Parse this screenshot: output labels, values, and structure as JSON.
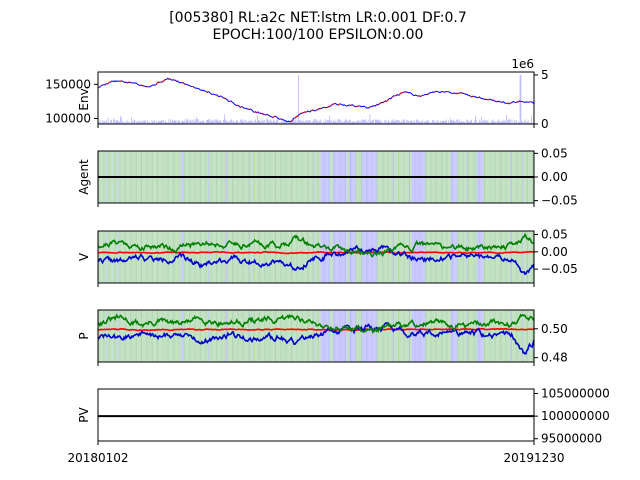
{
  "figure": {
    "title_line1": "[005380] RL:a2c NET:lstm LR:0.001 DF:0.7",
    "title_line2": "EPOCH:100/100 EPSILON:0.00"
  },
  "colors": {
    "price_up": "#ff0000",
    "price_down": "#0000ff",
    "volume": "#0000ff",
    "buy_action": "#008000",
    "sell_action": "#0000ff",
    "value_buy": "#008000",
    "value_sell": "#0000cc",
    "value_hold": "#ff0000",
    "pv_line": "#000000"
  },
  "chart_data": [
    {
      "type": "line",
      "name": "env",
      "ylabel": "Env.",
      "yticks": [
        "150000",
        "100000"
      ],
      "ytick_values": [
        150000,
        100000
      ],
      "ylim": [
        92000,
        168000
      ],
      "y2_ticks": [
        "5",
        "0"
      ],
      "y2_tick_values": [
        5,
        0
      ],
      "y2_offset_label": "1e6",
      "y2lim": [
        0,
        5.3
      ],
      "x_start": "20180102",
      "x_end": "20191230",
      "price_keyframes": [
        [
          0,
          145000
        ],
        [
          0.03,
          155000
        ],
        [
          0.08,
          152000
        ],
        [
          0.12,
          148000
        ],
        [
          0.16,
          158000
        ],
        [
          0.22,
          147000
        ],
        [
          0.28,
          133000
        ],
        [
          0.32,
          120000
        ],
        [
          0.36,
          110000
        ],
        [
          0.4,
          103000
        ],
        [
          0.44,
          96000
        ],
        [
          0.47,
          108000
        ],
        [
          0.5,
          112000
        ],
        [
          0.54,
          122000
        ],
        [
          0.58,
          119000
        ],
        [
          0.62,
          116000
        ],
        [
          0.66,
          124000
        ],
        [
          0.7,
          138000
        ],
        [
          0.74,
          133000
        ],
        [
          0.78,
          140000
        ],
        [
          0.82,
          138000
        ],
        [
          0.86,
          132000
        ],
        [
          0.9,
          128000
        ],
        [
          0.94,
          122000
        ],
        [
          0.97,
          124000
        ],
        [
          1.0,
          121000
        ]
      ],
      "volume_spike_x": [
        0.46,
        0.97
      ]
    },
    {
      "type": "area",
      "name": "agent",
      "ylabel": "Agent",
      "yticks": [
        "0.05",
        "0.00",
        "−0.05"
      ],
      "ytick_values": [
        0.05,
        0.0,
        -0.05
      ],
      "ylim": [
        -0.055,
        0.055
      ],
      "line_value": 0.0
    },
    {
      "type": "line",
      "name": "value",
      "ylabel": "V",
      "yticks": [
        "0.05",
        "0.00",
        "−0.05"
      ],
      "ytick_values": [
        0.05,
        0.0,
        -0.05
      ],
      "ylim": [
        -0.09,
        0.06
      ],
      "buy_keyframes": [
        [
          0,
          0.02
        ],
        [
          0.05,
          0.03
        ],
        [
          0.1,
          0.01
        ],
        [
          0.14,
          0.02
        ],
        [
          0.18,
          0.01
        ],
        [
          0.24,
          0.03
        ],
        [
          0.3,
          0.02
        ],
        [
          0.36,
          0.025
        ],
        [
          0.42,
          0.02
        ],
        [
          0.45,
          0.04
        ],
        [
          0.5,
          0.015
        ],
        [
          0.56,
          0.005
        ],
        [
          0.62,
          -0.005
        ],
        [
          0.66,
          0.0
        ],
        [
          0.7,
          0.01
        ],
        [
          0.75,
          0.02
        ],
        [
          0.8,
          0.015
        ],
        [
          0.85,
          0.01
        ],
        [
          0.9,
          0.02
        ],
        [
          0.95,
          0.015
        ],
        [
          0.98,
          0.045
        ],
        [
          1.0,
          0.03
        ]
      ],
      "sell_keyframes": [
        [
          0,
          -0.02
        ],
        [
          0.05,
          -0.03
        ],
        [
          0.1,
          -0.015
        ],
        [
          0.14,
          -0.025
        ],
        [
          0.18,
          -0.015
        ],
        [
          0.24,
          -0.035
        ],
        [
          0.3,
          -0.02
        ],
        [
          0.36,
          -0.03
        ],
        [
          0.42,
          -0.025
        ],
        [
          0.45,
          -0.045
        ],
        [
          0.5,
          -0.015
        ],
        [
          0.56,
          -0.005
        ],
        [
          0.62,
          0.01
        ],
        [
          0.66,
          0.005
        ],
        [
          0.7,
          -0.01
        ],
        [
          0.75,
          -0.02
        ],
        [
          0.8,
          -0.015
        ],
        [
          0.85,
          -0.01
        ],
        [
          0.9,
          -0.02
        ],
        [
          0.95,
          -0.02
        ],
        [
          0.98,
          -0.07
        ],
        [
          1.0,
          -0.04
        ]
      ],
      "hold_value": -0.002
    },
    {
      "type": "line",
      "name": "policy",
      "ylabel": "P",
      "yticks": [
        "0.50",
        "0.48"
      ],
      "ytick_values": [
        0.5,
        0.48
      ],
      "ylim": [
        0.477,
        0.513
      ],
      "buy_keyframes": [
        [
          0,
          0.505
        ],
        [
          0.05,
          0.507
        ],
        [
          0.1,
          0.503
        ],
        [
          0.14,
          0.505
        ],
        [
          0.18,
          0.503
        ],
        [
          0.24,
          0.507
        ],
        [
          0.3,
          0.504
        ],
        [
          0.36,
          0.506
        ],
        [
          0.42,
          0.505
        ],
        [
          0.45,
          0.509
        ],
        [
          0.5,
          0.503
        ],
        [
          0.56,
          0.501
        ],
        [
          0.62,
          0.499
        ],
        [
          0.66,
          0.5
        ],
        [
          0.7,
          0.502
        ],
        [
          0.75,
          0.504
        ],
        [
          0.8,
          0.503
        ],
        [
          0.85,
          0.502
        ],
        [
          0.9,
          0.504
        ],
        [
          0.95,
          0.503
        ],
        [
          0.98,
          0.511
        ],
        [
          1.0,
          0.506
        ]
      ],
      "sell_keyframes": [
        [
          0,
          0.495
        ],
        [
          0.05,
          0.493
        ],
        [
          0.1,
          0.497
        ],
        [
          0.14,
          0.494
        ],
        [
          0.18,
          0.497
        ],
        [
          0.24,
          0.492
        ],
        [
          0.3,
          0.496
        ],
        [
          0.36,
          0.493
        ],
        [
          0.42,
          0.494
        ],
        [
          0.45,
          0.49
        ],
        [
          0.5,
          0.497
        ],
        [
          0.56,
          0.499
        ],
        [
          0.62,
          0.501
        ],
        [
          0.66,
          0.5
        ],
        [
          0.7,
          0.498
        ],
        [
          0.75,
          0.496
        ],
        [
          0.8,
          0.497
        ],
        [
          0.85,
          0.498
        ],
        [
          0.9,
          0.495
        ],
        [
          0.95,
          0.496
        ],
        [
          0.98,
          0.481
        ],
        [
          1.0,
          0.491
        ]
      ],
      "hold_value": 0.4995
    },
    {
      "type": "line",
      "name": "pv",
      "ylabel": "PV",
      "yticks": [
        "105000000",
        "100000000",
        "95000000"
      ],
      "ytick_values": [
        105000000,
        100000000,
        95000000
      ],
      "ylim": [
        94500000,
        106000000
      ],
      "line_value": 100000000
    }
  ]
}
